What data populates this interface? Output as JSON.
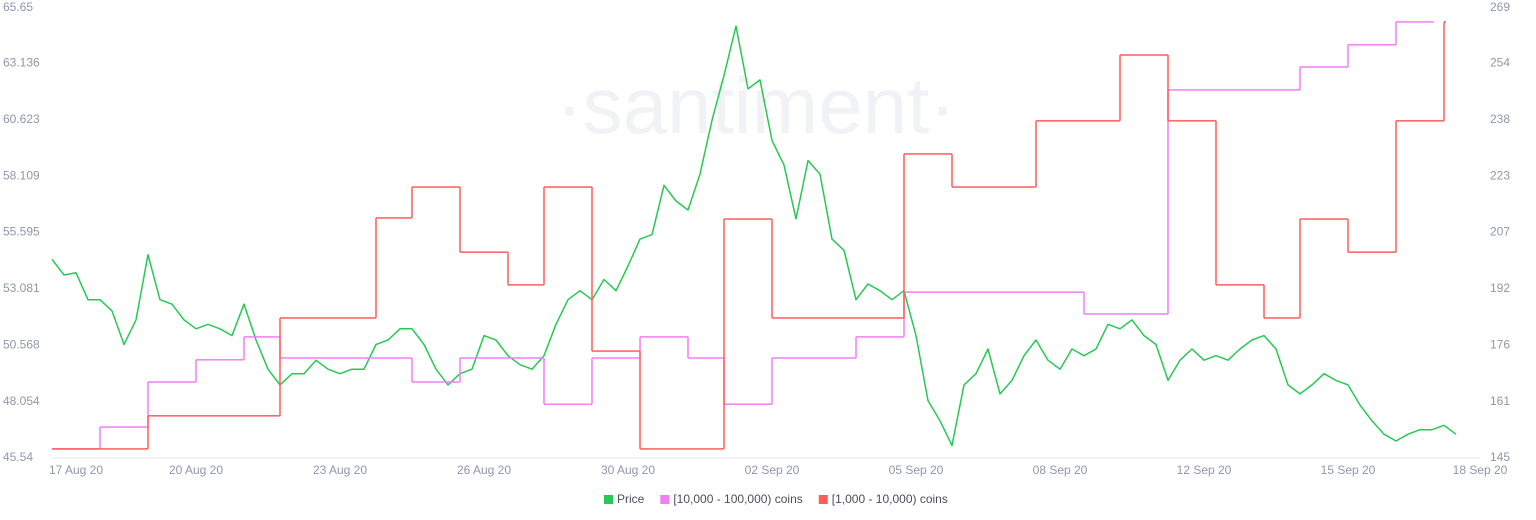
{
  "chart_data": {
    "type": "line",
    "watermark": "·santiment·",
    "categories": [
      null,
      null,
      "17 Aug 20",
      null,
      null,
      null,
      null,
      null,
      null,
      null,
      null,
      null,
      "20 Aug 20",
      null,
      null,
      null,
      null,
      null,
      null,
      null,
      null,
      null,
      null,
      null,
      "23 Aug 20",
      null,
      null,
      null,
      null,
      null,
      null,
      null,
      null,
      null,
      null,
      null,
      "26 Aug 20",
      null,
      null,
      null,
      null,
      null,
      null,
      null,
      null,
      null,
      null,
      null,
      "30 Aug 20",
      null,
      null,
      null,
      null,
      null,
      null,
      null,
      null,
      null,
      null,
      null,
      "02 Sep 20",
      null,
      null,
      null,
      null,
      null,
      null,
      null,
      null,
      null,
      null,
      null,
      "05 Sep 20",
      null,
      null,
      null,
      null,
      null,
      null,
      null,
      null,
      null,
      null,
      null,
      "08 Sep 20",
      null,
      null,
      null,
      null,
      null,
      null,
      null,
      null,
      null,
      null,
      null,
      "12 Sep 20",
      null,
      null,
      null,
      null,
      null,
      null,
      null,
      null,
      null,
      null,
      null,
      "15 Sep 20",
      null,
      null,
      null,
      null,
      null,
      null,
      null,
      null,
      null,
      null,
      "18 Sep 20"
    ],
    "series": [
      {
        "name": "Price",
        "color": "#26c953",
        "axis": "y",
        "values": [
          54.4,
          53.7,
          53.8,
          52.6,
          52.6,
          52.1,
          50.6,
          51.7,
          54.6,
          52.6,
          52.4,
          51.7,
          51.3,
          51.5,
          51.3,
          51.0,
          52.4,
          50.8,
          49.5,
          48.8,
          49.3,
          49.3,
          49.9,
          49.5,
          49.3,
          49.5,
          49.5,
          50.6,
          50.8,
          51.3,
          51.3,
          50.6,
          49.5,
          48.8,
          49.3,
          49.5,
          51.0,
          50.8,
          50.1,
          49.7,
          49.5,
          50.1,
          51.5,
          52.6,
          53.0,
          52.6,
          53.5,
          53.0,
          54.1,
          55.3,
          55.5,
          57.7,
          57.0,
          56.6,
          58.2,
          60.6,
          62.6,
          64.8,
          62.0,
          62.4,
          59.7,
          58.6,
          56.2,
          58.8,
          58.2,
          55.3,
          54.8,
          52.6,
          53.3,
          53.0,
          52.6,
          53.0,
          51.0,
          48.1,
          47.2,
          46.1,
          48.8,
          49.3,
          50.4,
          48.4,
          49.0,
          50.1,
          50.8,
          49.9,
          49.5,
          50.4,
          50.1,
          50.4,
          51.5,
          51.3,
          51.7,
          51.0,
          50.6,
          49.0,
          49.9,
          50.4,
          49.9,
          50.1,
          49.9,
          50.4,
          50.8,
          51.0,
          50.4,
          48.8,
          48.4,
          48.8,
          49.3,
          49.0,
          48.8,
          47.9,
          47.2,
          46.6,
          46.3,
          46.6,
          46.8,
          46.8,
          47.0,
          46.6,
          null,
          null
        ]
      },
      {
        "name": "[10,000 - 100,000) coins",
        "color": "#f27ff2",
        "axis": "y2",
        "step": true,
        "values": [
          147.5,
          147.5,
          147.5,
          147.5,
          153.5,
          153.5,
          153.5,
          153.5,
          165.9,
          165.9,
          165.9,
          165.9,
          172,
          172,
          172,
          172,
          178.3,
          178.3,
          178.3,
          172.5,
          172.5,
          172.5,
          172.5,
          172.5,
          172.5,
          172.5,
          172.5,
          172.5,
          172.5,
          172.5,
          165.9,
          165.9,
          165.9,
          165.9,
          172.5,
          172.5,
          172.5,
          172.5,
          172.5,
          172.5,
          172.5,
          159.8,
          159.8,
          159.8,
          159.8,
          172.5,
          172.5,
          172.5,
          172.5,
          178.3,
          178.3,
          178.3,
          178.3,
          172.5,
          172.5,
          172.5,
          159.8,
          159.8,
          159.8,
          159.8,
          172.5,
          172.5,
          172.5,
          172.5,
          172.5,
          172.5,
          172.5,
          178.3,
          178.3,
          178.3,
          178.3,
          190.6,
          190.6,
          190.6,
          190.6,
          190.6,
          190.6,
          190.6,
          190.6,
          190.6,
          190.6,
          190.6,
          190.6,
          190.6,
          190.6,
          190.6,
          184.6,
          184.6,
          184.6,
          184.6,
          184.6,
          184.6,
          184.6,
          246.2,
          246.2,
          246.2,
          246.2,
          246.2,
          246.2,
          246.2,
          246.2,
          246.2,
          246.2,
          246.2,
          252.5,
          252.5,
          252.5,
          252.5,
          258.6,
          258.6,
          258.6,
          258.6,
          264.9,
          264.9,
          264.9,
          264.9,
          null,
          null,
          null,
          null
        ]
      },
      {
        "name": "[1,000 - 10,000) coins",
        "color": "#ff5c5c",
        "axis": "y2",
        "step": true,
        "values": [
          147.5,
          147.5,
          147.5,
          147.5,
          147.5,
          147.5,
          147.5,
          147.5,
          156.6,
          156.6,
          156.6,
          156.6,
          156.6,
          156.6,
          156.6,
          156.6,
          156.6,
          156.6,
          156.6,
          183.5,
          183.5,
          183.5,
          183.5,
          183.5,
          183.5,
          183.5,
          183.5,
          211,
          211,
          211,
          219.5,
          219.5,
          219.5,
          219.5,
          201.6,
          201.6,
          201.6,
          201.6,
          192.6,
          192.6,
          192.6,
          219.5,
          219.5,
          219.5,
          219.5,
          174.4,
          174.4,
          174.4,
          174.4,
          147.5,
          147.5,
          147.5,
          147.5,
          147.5,
          147.5,
          147.5,
          210.7,
          210.7,
          210.7,
          210.7,
          183.5,
          183.5,
          183.5,
          183.5,
          183.5,
          183.5,
          183.5,
          183.5,
          183.5,
          183.5,
          183.5,
          228.6,
          228.6,
          228.6,
          228.6,
          219.5,
          219.5,
          219.5,
          219.5,
          219.5,
          219.5,
          219.5,
          237.7,
          237.7,
          237.7,
          237.7,
          237.7,
          237.7,
          237.7,
          255.8,
          255.8,
          255.8,
          255.8,
          237.7,
          237.7,
          237.7,
          237.7,
          192.6,
          192.6,
          192.6,
          192.6,
          183.5,
          183.5,
          183.5,
          210.7,
          210.7,
          210.7,
          210.7,
          201.6,
          201.6,
          201.6,
          201.6,
          237.7,
          237.7,
          237.7,
          237.7,
          264.9,
          null,
          null,
          null
        ]
      }
    ],
    "ylim": [
      45.54,
      65.65
    ],
    "yticks": [
      45.54,
      48.054,
      50.568,
      53.081,
      55.595,
      58.109,
      60.623,
      63.136,
      65.65
    ],
    "y2lim": [
      145,
      269
    ],
    "y2ticks": [
      145,
      {
        "value": 160.5,
        "label": "161"
      },
      176,
      {
        "value": 191.5,
        "label": "192"
      },
      207,
      {
        "value": 222.5,
        "label": "223"
      },
      238,
      {
        "value": 253.5,
        "label": "254"
      },
      269
    ],
    "grid": false,
    "legend": "bottom"
  }
}
